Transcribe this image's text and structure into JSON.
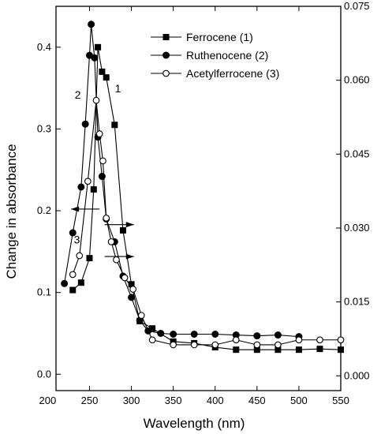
{
  "chart_data": {
    "type": "line",
    "xlabel": "Wavelength (nm)",
    "ylabel": "Change in absorbance",
    "xlim": [
      210,
      550
    ],
    "ylim_left": [
      -0.02,
      0.45
    ],
    "ylim_right": [
      -0.003,
      0.075
    ],
    "x_ticks": [
      200,
      250,
      300,
      350,
      400,
      450,
      500,
      550
    ],
    "y_left_ticks": [
      "0.0",
      "0.1",
      "0.2",
      "0.3",
      "0.4"
    ],
    "y_right_ticks": [
      "0.000",
      "0.015",
      "0.030",
      "0.045",
      "0.060",
      "0.075"
    ],
    "legend_position": "top-right",
    "series": [
      {
        "name": "Ferrocene (1)",
        "marker": "square-filled",
        "axis": "left",
        "x": [
          230,
          240,
          250,
          255,
          260,
          265,
          270,
          280,
          290,
          300,
          310,
          325,
          350,
          375,
          400,
          425,
          450,
          475,
          500,
          525,
          550
        ],
        "y": [
          0.103,
          0.112,
          0.142,
          0.226,
          0.4,
          0.37,
          0.363,
          0.305,
          0.176,
          0.11,
          0.065,
          0.056,
          0.04,
          0.038,
          0.033,
          0.03,
          0.03,
          0.03,
          0.03,
          0.031,
          0.03
        ]
      },
      {
        "name": "Ruthenocene (2)",
        "marker": "circle-filled",
        "axis": "left",
        "x": [
          220,
          230,
          240,
          245,
          250,
          252,
          256,
          260,
          265,
          270,
          280,
          290,
          300,
          310,
          320,
          335,
          350,
          375,
          400,
          425,
          450,
          475,
          500
        ],
        "y": [
          0.111,
          0.173,
          0.229,
          0.306,
          0.39,
          0.428,
          0.387,
          0.29,
          0.242,
          0.19,
          0.162,
          0.12,
          0.094,
          0.066,
          0.053,
          0.05,
          0.049,
          0.049,
          0.049,
          0.048,
          0.047,
          0.048,
          0.046
        ]
      },
      {
        "name": "Acetylferrocene (3)",
        "marker": "circle-open",
        "axis": "left",
        "x": [
          230,
          238,
          248,
          258,
          262,
          266,
          270,
          276,
          282,
          292,
          302,
          312,
          325,
          350,
          375,
          400,
          425,
          450,
          475,
          500,
          525,
          550
        ],
        "y": [
          0.122,
          0.145,
          0.236,
          0.335,
          0.294,
          0.261,
          0.191,
          0.162,
          0.14,
          0.118,
          0.104,
          0.072,
          0.042,
          0.036,
          0.036,
          0.036,
          0.042,
          0.036,
          0.036,
          0.042,
          0.042,
          0.042
        ]
      }
    ],
    "annotations": [
      {
        "text": "1",
        "x": 284,
        "y": 0.345
      },
      {
        "text": "2",
        "x": 236,
        "y": 0.337
      },
      {
        "text": "3",
        "x": 235,
        "y": 0.16
      }
    ],
    "arrows": [
      {
        "direction": "left",
        "from_x": 262,
        "to_x": 228,
        "y": 0.202
      },
      {
        "direction": "right",
        "from_x": 268,
        "to_x": 303,
        "y": 0.183
      },
      {
        "direction": "right",
        "from_x": 268,
        "to_x": 303,
        "y": 0.144
      }
    ]
  }
}
